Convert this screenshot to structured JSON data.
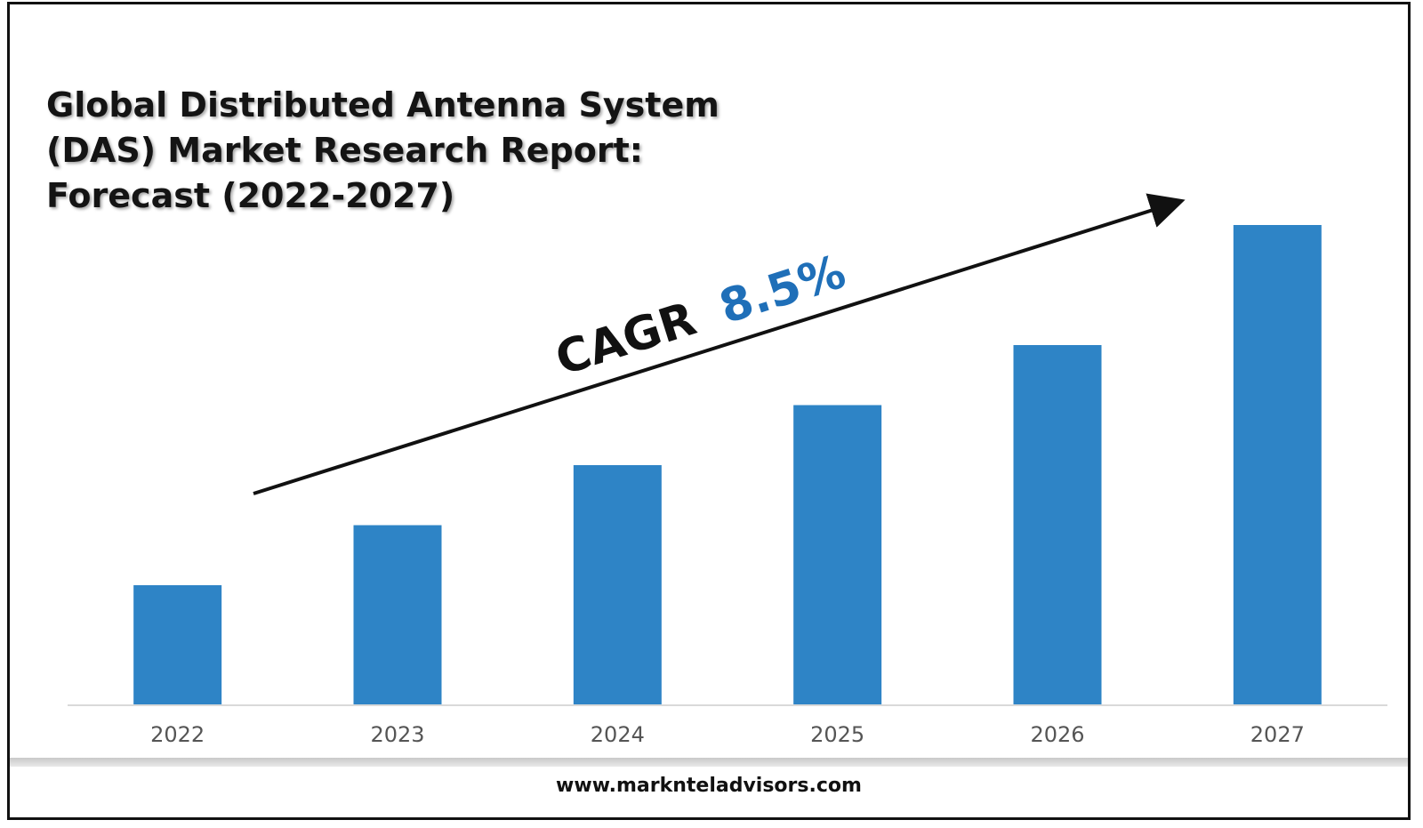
{
  "title_lines": [
    "Global Distributed Antenna System",
    "(DAS) Market Research Report:",
    "Forecast (2022-2027)"
  ],
  "annotation": {
    "label": "CAGR",
    "value": "8.5%",
    "label_color": "#111111",
    "value_color": "#1f6fb8"
  },
  "footer": {
    "url": "www.marknteladvisors.com"
  },
  "colors": {
    "bar": "#2e84c6",
    "axis": "#d9d9d9",
    "arrow": "#111111"
  },
  "chart_data": {
    "type": "bar",
    "title": "Global Distributed Antenna System (DAS) Market Research Report: Forecast (2022-2027)",
    "categories": [
      "2022",
      "2023",
      "2024",
      "2025",
      "2026",
      "2027"
    ],
    "values": [
      1.0,
      1.5,
      2.0,
      2.5,
      3.0,
      4.0
    ],
    "xlabel": "",
    "ylabel": "",
    "ylim": [
      0,
      4.0
    ],
    "grid": false,
    "legend": "none"
  }
}
